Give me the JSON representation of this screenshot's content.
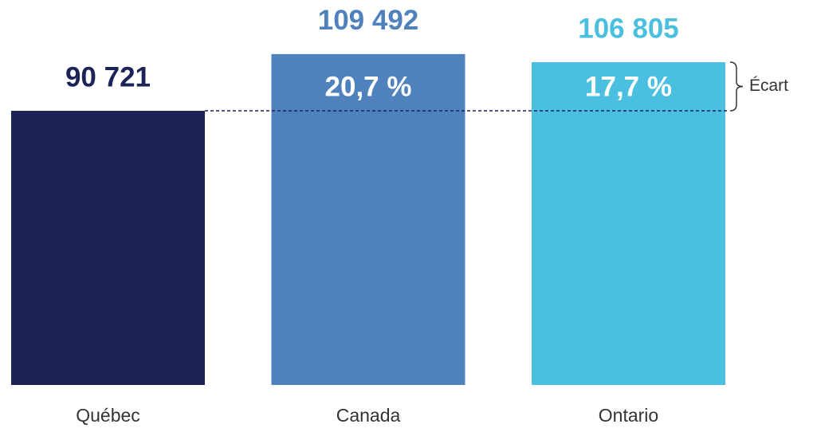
{
  "chart_data": {
    "type": "bar",
    "categories": [
      "Québec",
      "Canada",
      "Ontario"
    ],
    "values": [
      90721,
      109492,
      106805
    ],
    "value_labels": [
      "90 721",
      "109 492",
      "106 805"
    ],
    "colors": [
      "#1c2457",
      "#4f81bd",
      "#4bbfe0"
    ],
    "gap_values": [
      null,
      20.7,
      17.7
    ],
    "gap_labels": [
      null,
      "20,7 %",
      "17,7 %"
    ],
    "gap_label": "Écart",
    "ylim": [
      0,
      120000
    ]
  }
}
